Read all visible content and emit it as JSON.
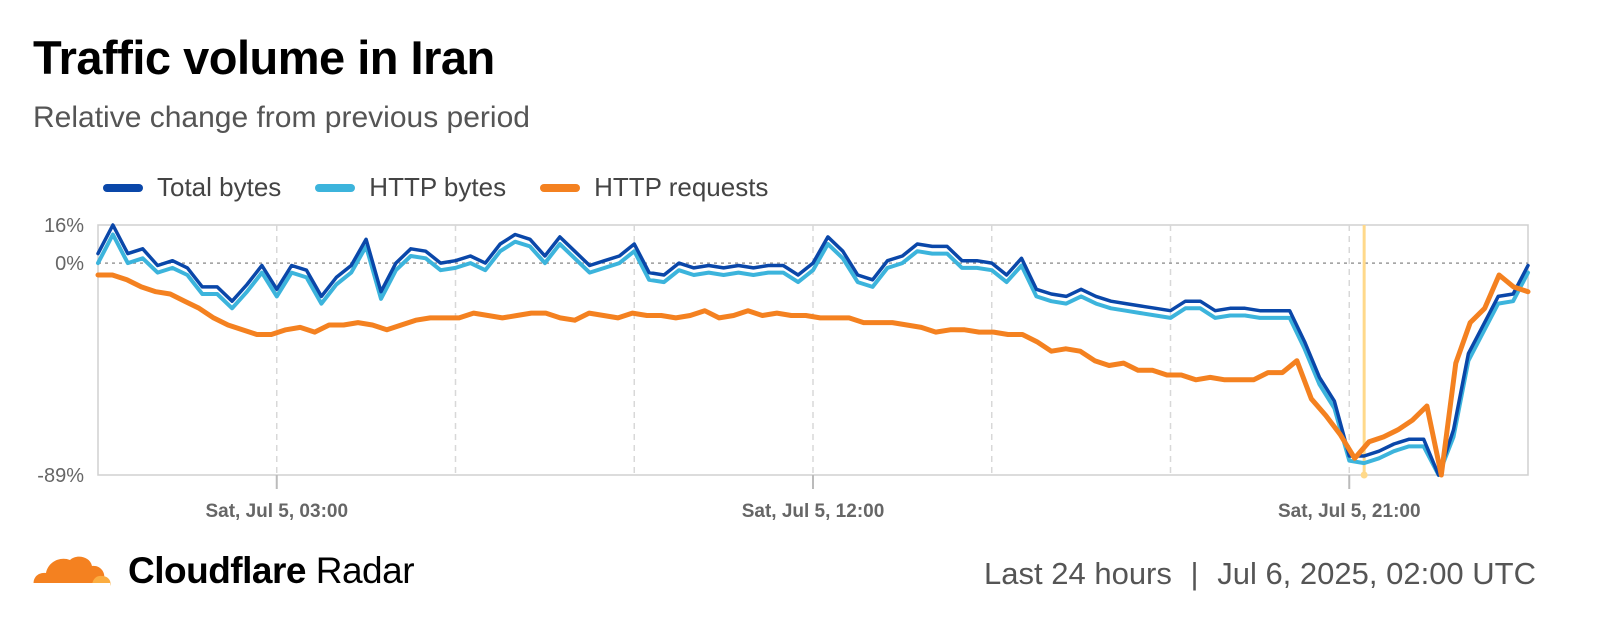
{
  "header": {
    "title": "Traffic volume in Iran",
    "subtitle": "Relative change from previous period"
  },
  "footer": {
    "brand_bold": "Cloudflare",
    "brand_light": "Radar",
    "range": "Last 24 hours",
    "separator": "|",
    "timestamp": "Jul 6, 2025, 02:00 UTC"
  },
  "colors": {
    "total_bytes": "#0a47a9",
    "http_bytes": "#3cb4dc",
    "http_requests": "#f48120",
    "highlight": "#ffd98a",
    "logo": "#f48120"
  },
  "chart_data": {
    "type": "line",
    "ylim": [
      -89,
      16
    ],
    "ytick_labels": [
      "16%",
      "0%",
      "-89%"
    ],
    "ytick_values": [
      16,
      0,
      -89
    ],
    "xlim": [
      0,
      24
    ],
    "xtick_labels": [
      "Sat, Jul 5, 03:00",
      "Sat, Jul 5, 12:00",
      "Sat, Jul 5, 21:00"
    ],
    "xtick_values": [
      3,
      12,
      21
    ],
    "minor_gridlines_x": [
      6,
      9,
      15,
      18,
      24
    ],
    "zero_line": true,
    "highlight_x": 21.25,
    "legend_position": "top-left",
    "series": [
      {
        "name": "Total bytes",
        "color": "#0a47a9",
        "values": [
          4,
          16,
          4,
          6,
          -1,
          1,
          -2,
          -10,
          -10,
          -16,
          -9,
          -1,
          -11,
          -1,
          -3,
          -14,
          -6,
          -1,
          10,
          -12,
          0,
          6,
          5,
          0,
          1,
          3,
          0,
          8,
          12,
          10,
          3,
          11,
          5,
          -1,
          1,
          3,
          8,
          -4,
          -5,
          0,
          -2,
          -1,
          -2,
          -1,
          -2,
          -1,
          -1,
          -5,
          0,
          11,
          5,
          -5,
          -7,
          1,
          3,
          8,
          7,
          7,
          1,
          1,
          0,
          -5,
          2,
          -11,
          -13,
          -14,
          -11,
          -14,
          -16,
          -17,
          -18,
          -19,
          -20,
          -16,
          -16,
          -20,
          -19,
          -19,
          -20,
          -20,
          -20,
          -33,
          -48,
          -58,
          -81,
          -81,
          -79,
          -76,
          -74,
          -74,
          -89,
          -70,
          -38,
          -26,
          -14,
          -13,
          -1
        ],
        "line_width": 3.5
      },
      {
        "name": "HTTP bytes",
        "color": "#3cb4dc",
        "values": [
          0,
          12,
          0,
          2,
          -4,
          -2,
          -5,
          -13,
          -13,
          -19,
          -12,
          -4,
          -14,
          -4,
          -6,
          -17,
          -9,
          -4,
          7,
          -15,
          -3,
          3,
          2,
          -3,
          -2,
          0,
          -3,
          5,
          9,
          7,
          0,
          8,
          2,
          -4,
          -2,
          0,
          5,
          -7,
          -8,
          -3,
          -5,
          -4,
          -5,
          -4,
          -5,
          -4,
          -4,
          -8,
          -3,
          8,
          2,
          -8,
          -10,
          -2,
          0,
          5,
          4,
          4,
          -2,
          -2,
          -3,
          -8,
          -1,
          -14,
          -16,
          -17,
          -14,
          -17,
          -19,
          -20,
          -21,
          -22,
          -23,
          -19,
          -19,
          -23,
          -22,
          -22,
          -23,
          -23,
          -23,
          -36,
          -51,
          -61,
          -83,
          -84,
          -82,
          -79,
          -77,
          -77,
          -89,
          -73,
          -41,
          -29,
          -17,
          -16,
          -4
        ],
        "line_width": 4
      },
      {
        "name": "HTTP requests",
        "color": "#f48120",
        "values": [
          -5,
          -5,
          -7,
          -10,
          -12,
          -13,
          -16,
          -19,
          -23,
          -26,
          -28,
          -30,
          -30,
          -28,
          -27,
          -29,
          -26,
          -26,
          -25,
          -26,
          -28,
          -26,
          -24,
          -23,
          -23,
          -23,
          -21,
          -22,
          -23,
          -22,
          -21,
          -21,
          -23,
          -24,
          -21,
          -22,
          -23,
          -21,
          -22,
          -22,
          -23,
          -22,
          -20,
          -23,
          -22,
          -20,
          -22,
          -21,
          -22,
          -22,
          -23,
          -23,
          -23,
          -25,
          -25,
          -25,
          -26,
          -27,
          -29,
          -28,
          -28,
          -29,
          -29,
          -30,
          -30,
          -33,
          -37,
          -36,
          -37,
          -41,
          -43,
          -42,
          -45,
          -45,
          -47,
          -47,
          -49,
          -48,
          -49,
          -49,
          -49,
          -46,
          -46,
          -41,
          -57,
          -64,
          -72,
          -82,
          -75,
          -73,
          -70,
          -66,
          -60,
          -89,
          -42,
          -25,
          -19,
          -5,
          -10,
          -12
        ],
        "line_width": 5
      }
    ]
  }
}
